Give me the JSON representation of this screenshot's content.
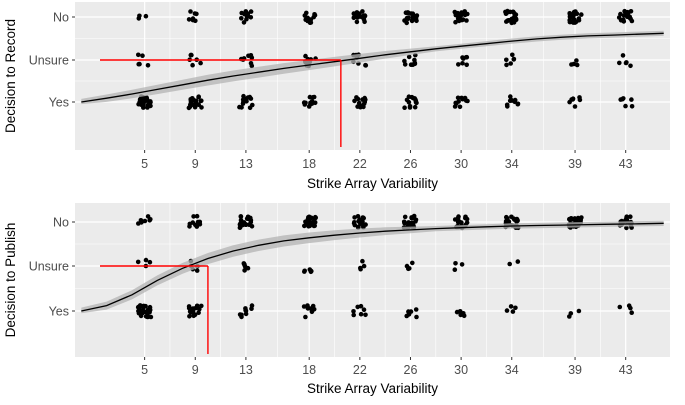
{
  "chart_data": [
    {
      "type": "scatter",
      "xlabel": "Strike Array Variability",
      "ylabel": "Decision to Record",
      "x_ticks": [
        5,
        9,
        13,
        18,
        22,
        26,
        30,
        34,
        39,
        43
      ],
      "categories": [
        "Yes",
        "Unsure",
        "No"
      ],
      "xlim": [
        -0.5,
        46.5
      ],
      "counts": {
        "Yes": [
          26,
          22,
          13,
          13,
          13,
          14,
          11,
          10,
          7,
          6
        ],
        "Unsure": [
          5,
          6,
          8,
          10,
          8,
          9,
          7,
          6,
          4,
          5
        ],
        "No": [
          3,
          7,
          12,
          14,
          17,
          20,
          22,
          20,
          20,
          17
        ]
      },
      "curve": {
        "x": [
          0,
          2,
          4,
          6,
          8,
          10,
          12,
          14,
          16,
          18,
          20,
          22,
          24,
          26,
          28,
          30,
          32,
          34,
          36,
          38,
          40,
          42,
          44,
          46
        ],
        "y": [
          1.0,
          1.09,
          1.19,
          1.3,
          1.41,
          1.52,
          1.62,
          1.71,
          1.8,
          1.88,
          1.96,
          2.04,
          2.12,
          2.19,
          2.26,
          2.32,
          2.38,
          2.44,
          2.49,
          2.53,
          2.56,
          2.58,
          2.6,
          2.62
        ]
      },
      "reference": {
        "x": 20.5,
        "y": 2
      }
    },
    {
      "type": "scatter",
      "xlabel": "Strike Array Variability",
      "ylabel": "Decision to Publish",
      "x_ticks": [
        5,
        9,
        13,
        18,
        22,
        26,
        30,
        34,
        39,
        43
      ],
      "categories": [
        "Yes",
        "Unsure",
        "No"
      ],
      "xlim": [
        -0.5,
        46.5
      ],
      "counts": {
        "Yes": [
          26,
          20,
          9,
          9,
          7,
          7,
          6,
          4,
          3,
          4
        ],
        "Unsure": [
          4,
          6,
          6,
          5,
          4,
          4,
          3,
          2,
          0,
          0
        ],
        "No": [
          7,
          12,
          21,
          22,
          21,
          22,
          20,
          23,
          23,
          19
        ]
      },
      "curve": {
        "x": [
          0,
          2,
          4,
          6,
          8,
          10,
          12,
          14,
          16,
          18,
          20,
          22,
          24,
          26,
          28,
          30,
          32,
          34,
          36,
          38,
          40,
          42,
          44,
          46
        ],
        "y": [
          1.0,
          1.12,
          1.36,
          1.68,
          1.95,
          2.17,
          2.34,
          2.47,
          2.57,
          2.64,
          2.7,
          2.75,
          2.79,
          2.82,
          2.85,
          2.87,
          2.89,
          2.91,
          2.92,
          2.93,
          2.94,
          2.95,
          2.96,
          2.97
        ]
      },
      "reference": {
        "x": 10,
        "y": 2
      }
    }
  ],
  "colors": {
    "panel": "#ebebeb",
    "grid": "#ffffff",
    "point": "#000000",
    "curve": "#000000",
    "band": "#b3b3b3",
    "reference": "#ff0000",
    "text": "#4d4d4d",
    "title": "#000000"
  }
}
